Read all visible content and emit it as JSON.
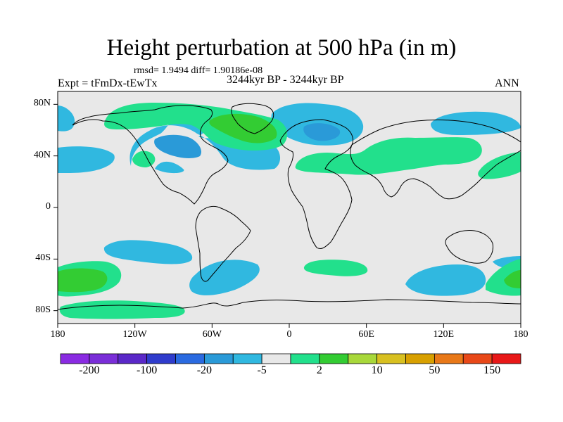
{
  "title": "Height perturbation at 500 hPa (in m)",
  "stats_line": "rmsd= 1.9494  diff= 1.90186e-08",
  "experiment_label": "Expt = tFmDx-tEwTx",
  "period_label": "3244kyr BP - 3244kyr BP",
  "season_label": "ANN",
  "lat_ticks": [
    {
      "value": 80,
      "label": "80N"
    },
    {
      "value": 40,
      "label": "40N"
    },
    {
      "value": 0,
      "label": "0"
    },
    {
      "value": -40,
      "label": "40S"
    },
    {
      "value": -80,
      "label": "80S"
    }
  ],
  "lon_ticks": [
    {
      "value": -180,
      "label": "180"
    },
    {
      "value": -120,
      "label": "120W"
    },
    {
      "value": -60,
      "label": "60W"
    },
    {
      "value": 0,
      "label": "0"
    },
    {
      "value": 60,
      "label": "60E"
    },
    {
      "value": 120,
      "label": "120E"
    },
    {
      "value": 180,
      "label": "180"
    }
  ],
  "map_extent": {
    "lon": [
      -180,
      180
    ],
    "lat": [
      -90,
      90
    ]
  },
  "colorbar": {
    "colors": [
      "#8a2be2",
      "#7a2ed8",
      "#5a28c8",
      "#2f3ccc",
      "#2a6ae0",
      "#2a9ad8",
      "#30b8e0",
      "#e8e8e8",
      "#22e08c",
      "#33cc33",
      "#a8d83a",
      "#d8c020",
      "#d8a000",
      "#e87818",
      "#e84818",
      "#e81818"
    ],
    "labels": [
      {
        "boundary": 1,
        "text": "-200"
      },
      {
        "boundary": 3,
        "text": "-100"
      },
      {
        "boundary": 5,
        "text": "-20"
      },
      {
        "boundary": 7,
        "text": "-5"
      },
      {
        "boundary": 9,
        "text": "2"
      },
      {
        "boundary": 11,
        "text": "10"
      },
      {
        "boundary": 13,
        "text": "50"
      },
      {
        "boundary": 15,
        "text": "150"
      }
    ]
  },
  "colors": {
    "background": "#e8e8e8",
    "negative_light": "#30b8e0",
    "negative_mid": "#2a9ad8",
    "positive_light": "#22e08c",
    "positive_mid": "#33cc33",
    "coastline": "#000000"
  }
}
